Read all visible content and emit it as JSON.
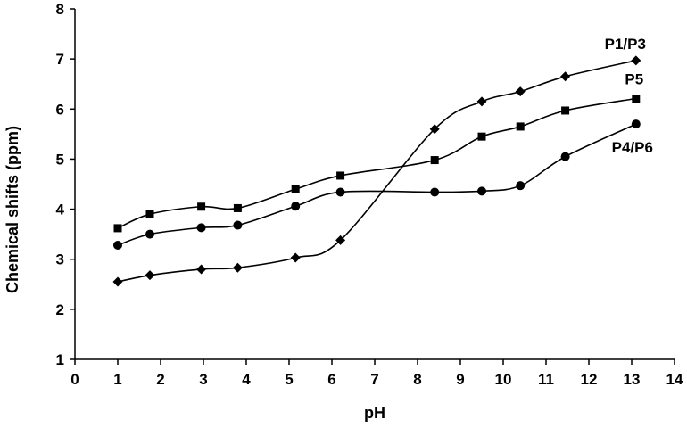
{
  "chart_data": {
    "type": "line",
    "xlabel": "pH",
    "ylabel": "Chemical shifts (ppm)",
    "xlim": [
      0,
      14
    ],
    "ylim": [
      1,
      8
    ],
    "xticks": [
      "0",
      "1",
      "2",
      "3",
      "4",
      "5",
      "6",
      "7",
      "8",
      "9",
      "10",
      "11",
      "12",
      "13",
      "14"
    ],
    "yticks": [
      "1",
      "2",
      "3",
      "4",
      "5",
      "6",
      "7",
      "8"
    ],
    "grid": false,
    "legend": "inline-labels",
    "series": [
      {
        "name": "P1/P3",
        "marker": "diamond",
        "x": [
          1.0,
          1.75,
          2.95,
          3.8,
          5.15,
          6.2,
          8.4,
          9.5,
          10.4,
          11.45,
          13.1
        ],
        "y": [
          2.55,
          2.68,
          2.8,
          2.83,
          3.03,
          3.38,
          5.6,
          6.15,
          6.35,
          6.65,
          6.97
        ]
      },
      {
        "name": "P5",
        "marker": "square",
        "x": [
          1.0,
          1.75,
          2.95,
          3.8,
          5.15,
          6.2,
          8.4,
          9.5,
          10.4,
          11.45,
          13.1
        ],
        "y": [
          3.62,
          3.9,
          4.05,
          4.02,
          4.4,
          4.67,
          4.98,
          5.45,
          5.65,
          5.97,
          6.21
        ]
      },
      {
        "name": "P4/P6",
        "marker": "circle",
        "x": [
          1.0,
          1.75,
          2.95,
          3.8,
          5.15,
          6.2,
          8.4,
          9.5,
          10.4,
          11.45,
          13.1
        ],
        "y": [
          3.28,
          3.5,
          3.63,
          3.68,
          4.06,
          4.34,
          4.34,
          4.36,
          4.47,
          5.05,
          5.7
        ]
      }
    ]
  }
}
